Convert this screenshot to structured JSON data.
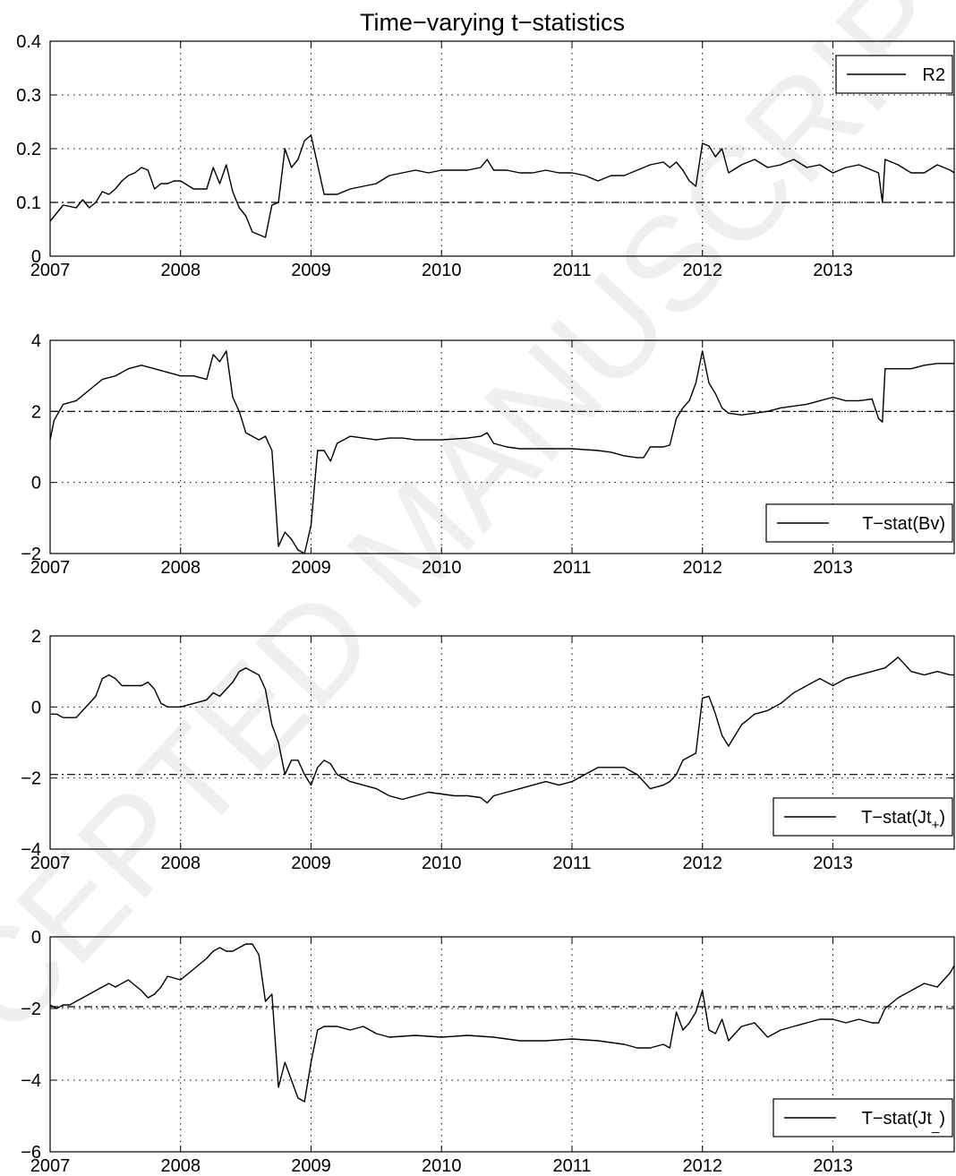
{
  "figure_title": "Time−varying t−statistics",
  "watermark": "ACCEPTED MANUSCRIPT",
  "chart_data": [
    {
      "type": "line",
      "title": "Time−varying t−statistics",
      "xlim": [
        2007.0,
        2013.93
      ],
      "ylim": [
        0,
        0.4
      ],
      "xticks": [
        2007,
        2008,
        2009,
        2010,
        2011,
        2012,
        2013
      ],
      "yticks": [
        0,
        0.1,
        0.2,
        0.3,
        0.4
      ],
      "ytick_labels": [
        "0",
        "0.1",
        "0.2",
        "0.3",
        "0.4"
      ],
      "grid": true,
      "legend": "top-right",
      "reference_line": {
        "y": 0.1,
        "style": "dash-dot"
      },
      "series": [
        {
          "name": "R2",
          "x": [
            2007.0,
            2007.05,
            2007.1,
            2007.2,
            2007.25,
            2007.3,
            2007.35,
            2007.4,
            2007.45,
            2007.5,
            2007.55,
            2007.6,
            2007.65,
            2007.7,
            2007.75,
            2007.8,
            2007.85,
            2007.9,
            2007.95,
            2008.0,
            2008.1,
            2008.2,
            2008.25,
            2008.3,
            2008.35,
            2008.4,
            2008.45,
            2008.5,
            2008.55,
            2008.6,
            2008.65,
            2008.7,
            2008.75,
            2008.8,
            2008.85,
            2008.9,
            2008.95,
            2009.0,
            2009.05,
            2009.1,
            2009.2,
            2009.3,
            2009.4,
            2009.5,
            2009.6,
            2009.7,
            2009.8,
            2009.9,
            2010.0,
            2010.2,
            2010.3,
            2010.35,
            2010.4,
            2010.5,
            2010.6,
            2010.7,
            2010.8,
            2010.9,
            2011.0,
            2011.1,
            2011.2,
            2011.3,
            2011.4,
            2011.5,
            2011.6,
            2011.7,
            2011.75,
            2011.8,
            2011.85,
            2011.9,
            2011.95,
            2012.0,
            2012.05,
            2012.1,
            2012.15,
            2012.2,
            2012.3,
            2012.4,
            2012.5,
            2012.6,
            2012.7,
            2012.8,
            2012.9,
            2013.0,
            2013.1,
            2013.2,
            2013.3,
            2013.35,
            2013.38,
            2013.4,
            2013.5,
            2013.6,
            2013.7,
            2013.8,
            2013.9,
            2013.93
          ],
          "y": [
            0.065,
            0.08,
            0.095,
            0.09,
            0.105,
            0.09,
            0.1,
            0.12,
            0.115,
            0.125,
            0.14,
            0.15,
            0.155,
            0.165,
            0.16,
            0.125,
            0.135,
            0.135,
            0.14,
            0.14,
            0.125,
            0.125,
            0.165,
            0.135,
            0.17,
            0.12,
            0.09,
            0.075,
            0.045,
            0.04,
            0.035,
            0.095,
            0.1,
            0.2,
            0.165,
            0.18,
            0.215,
            0.225,
            0.17,
            0.115,
            0.115,
            0.125,
            0.13,
            0.135,
            0.15,
            0.155,
            0.16,
            0.155,
            0.16,
            0.16,
            0.165,
            0.18,
            0.16,
            0.16,
            0.155,
            0.155,
            0.16,
            0.155,
            0.155,
            0.15,
            0.14,
            0.15,
            0.15,
            0.16,
            0.17,
            0.175,
            0.165,
            0.175,
            0.16,
            0.14,
            0.13,
            0.21,
            0.205,
            0.185,
            0.2,
            0.155,
            0.17,
            0.18,
            0.165,
            0.17,
            0.18,
            0.165,
            0.17,
            0.155,
            0.165,
            0.17,
            0.16,
            0.155,
            0.1,
            0.18,
            0.17,
            0.155,
            0.155,
            0.17,
            0.16,
            0.155
          ]
        }
      ]
    },
    {
      "type": "line",
      "xlim": [
        2007.0,
        2013.93
      ],
      "ylim": [
        -2,
        4
      ],
      "xticks": [
        2007,
        2008,
        2009,
        2010,
        2011,
        2012,
        2013
      ],
      "yticks": [
        -2,
        0,
        2,
        4
      ],
      "ytick_labels": [
        "−2",
        "0",
        "2",
        "4"
      ],
      "grid": true,
      "legend": "bottom-right",
      "reference_line": {
        "y": 2,
        "style": "dash-dot"
      },
      "series": [
        {
          "name": "T−stat(Bv)",
          "x": [
            2007.0,
            2007.03,
            2007.1,
            2007.2,
            2007.3,
            2007.4,
            2007.5,
            2007.6,
            2007.7,
            2007.8,
            2007.9,
            2008.0,
            2008.1,
            2008.2,
            2008.25,
            2008.3,
            2008.35,
            2008.4,
            2008.45,
            2008.5,
            2008.55,
            2008.6,
            2008.65,
            2008.7,
            2008.75,
            2008.8,
            2008.85,
            2008.9,
            2008.95,
            2009.0,
            2009.05,
            2009.1,
            2009.15,
            2009.2,
            2009.3,
            2009.4,
            2009.5,
            2009.6,
            2009.7,
            2009.8,
            2009.9,
            2010.0,
            2010.2,
            2010.3,
            2010.35,
            2010.4,
            2010.5,
            2010.6,
            2010.8,
            2011.0,
            2011.2,
            2011.3,
            2011.4,
            2011.5,
            2011.55,
            2011.6,
            2011.7,
            2011.75,
            2011.8,
            2011.85,
            2011.9,
            2011.95,
            2012.0,
            2012.05,
            2012.1,
            2012.15,
            2012.2,
            2012.3,
            2012.4,
            2012.5,
            2012.6,
            2012.8,
            2012.9,
            2013.0,
            2013.1,
            2013.2,
            2013.3,
            2013.35,
            2013.38,
            2013.4,
            2013.6,
            2013.7,
            2013.8,
            2013.93
          ],
          "y": [
            1.2,
            1.75,
            2.2,
            2.3,
            2.6,
            2.9,
            3.0,
            3.2,
            3.3,
            3.2,
            3.1,
            3.0,
            3.0,
            2.9,
            3.6,
            3.4,
            3.7,
            2.4,
            2.0,
            1.4,
            1.3,
            1.2,
            1.3,
            0.9,
            -1.8,
            -1.4,
            -1.6,
            -1.9,
            -2.0,
            -1.2,
            0.9,
            0.9,
            0.6,
            1.1,
            1.3,
            1.25,
            1.2,
            1.25,
            1.25,
            1.2,
            1.2,
            1.2,
            1.25,
            1.3,
            1.4,
            1.1,
            1.0,
            0.95,
            0.95,
            0.95,
            0.9,
            0.85,
            0.75,
            0.7,
            0.7,
            1.0,
            1.0,
            1.05,
            1.8,
            2.1,
            2.3,
            2.8,
            3.7,
            2.8,
            2.5,
            2.1,
            1.95,
            1.9,
            1.95,
            2.0,
            2.1,
            2.2,
            2.3,
            2.4,
            2.3,
            2.3,
            2.35,
            1.8,
            1.7,
            3.2,
            3.2,
            3.3,
            3.35,
            3.35
          ]
        }
      ]
    },
    {
      "type": "line",
      "xlim": [
        2007.0,
        2013.93
      ],
      "ylim": [
        -4,
        2
      ],
      "xticks": [
        2007,
        2008,
        2009,
        2010,
        2011,
        2012,
        2013
      ],
      "yticks": [
        -4,
        -2,
        0,
        2
      ],
      "ytick_labels": [
        "−4",
        "−2",
        "0",
        "2"
      ],
      "grid": true,
      "legend": "bottom-right",
      "reference_line": {
        "y": -1.9,
        "style": "dash-dot"
      },
      "series": [
        {
          "name": "T−stat(Jt+)",
          "x": [
            2007.0,
            2007.05,
            2007.1,
            2007.2,
            2007.3,
            2007.35,
            2007.4,
            2007.45,
            2007.5,
            2007.55,
            2007.6,
            2007.7,
            2007.75,
            2007.8,
            2007.85,
            2007.9,
            2008.0,
            2008.1,
            2008.2,
            2008.25,
            2008.3,
            2008.35,
            2008.4,
            2008.45,
            2008.5,
            2008.55,
            2008.6,
            2008.65,
            2008.7,
            2008.75,
            2008.8,
            2008.85,
            2008.9,
            2008.95,
            2009.0,
            2009.05,
            2009.1,
            2009.15,
            2009.2,
            2009.3,
            2009.4,
            2009.5,
            2009.6,
            2009.7,
            2009.8,
            2009.9,
            2010.0,
            2010.1,
            2010.2,
            2010.3,
            2010.35,
            2010.4,
            2010.5,
            2010.6,
            2010.7,
            2010.8,
            2010.9,
            2011.0,
            2011.1,
            2011.2,
            2011.3,
            2011.4,
            2011.5,
            2011.55,
            2011.6,
            2011.7,
            2011.75,
            2011.8,
            2011.85,
            2011.9,
            2011.95,
            2012.0,
            2012.05,
            2012.1,
            2012.15,
            2012.2,
            2012.3,
            2012.4,
            2012.5,
            2012.6,
            2012.7,
            2012.8,
            2012.9,
            2013.0,
            2013.1,
            2013.2,
            2013.3,
            2013.4,
            2013.5,
            2013.55,
            2013.6,
            2013.7,
            2013.8,
            2013.9,
            2013.93
          ],
          "y": [
            -0.2,
            -0.2,
            -0.3,
            -0.3,
            0.1,
            0.3,
            0.8,
            0.9,
            0.8,
            0.6,
            0.6,
            0.6,
            0.7,
            0.5,
            0.1,
            0.0,
            0.0,
            0.1,
            0.2,
            0.4,
            0.3,
            0.5,
            0.7,
            1.0,
            1.1,
            1.0,
            0.9,
            0.5,
            -0.5,
            -1.0,
            -1.9,
            -1.5,
            -1.5,
            -1.9,
            -2.2,
            -1.7,
            -1.5,
            -1.6,
            -1.9,
            -2.1,
            -2.2,
            -2.3,
            -2.5,
            -2.6,
            -2.5,
            -2.4,
            -2.45,
            -2.5,
            -2.5,
            -2.55,
            -2.7,
            -2.5,
            -2.4,
            -2.3,
            -2.2,
            -2.1,
            -2.2,
            -2.1,
            -1.9,
            -1.7,
            -1.7,
            -1.7,
            -1.9,
            -2.1,
            -2.3,
            -2.2,
            -2.1,
            -1.9,
            -1.5,
            -1.4,
            -1.3,
            0.25,
            0.3,
            -0.2,
            -0.8,
            -1.1,
            -0.5,
            -0.2,
            -0.1,
            0.1,
            0.4,
            0.6,
            0.8,
            0.6,
            0.8,
            0.9,
            1.0,
            1.1,
            1.4,
            1.2,
            1.0,
            0.9,
            1.0,
            0.9,
            0.9
          ]
        }
      ]
    },
    {
      "type": "line",
      "xlim": [
        2007.0,
        2013.93
      ],
      "ylim": [
        -6,
        0
      ],
      "xticks": [
        2007,
        2008,
        2009,
        2010,
        2011,
        2012,
        2013
      ],
      "yticks": [
        -6,
        -4,
        -2,
        0
      ],
      "ytick_labels": [
        "−6",
        "−4",
        "−2",
        "0"
      ],
      "grid": true,
      "legend": "bottom-right",
      "reference_line": {
        "y": -1.95,
        "style": "dash-dot"
      },
      "series": [
        {
          "name": "T−stat(Jt−)",
          "x": [
            2007.0,
            2007.05,
            2007.1,
            2007.15,
            2007.2,
            2007.3,
            2007.4,
            2007.45,
            2007.5,
            2007.6,
            2007.7,
            2007.75,
            2007.8,
            2007.85,
            2007.9,
            2008.0,
            2008.1,
            2008.2,
            2008.25,
            2008.3,
            2008.35,
            2008.4,
            2008.45,
            2008.5,
            2008.55,
            2008.6,
            2008.65,
            2008.7,
            2008.75,
            2008.8,
            2008.85,
            2008.9,
            2008.95,
            2009.0,
            2009.05,
            2009.1,
            2009.2,
            2009.3,
            2009.4,
            2009.5,
            2009.6,
            2009.8,
            2010.0,
            2010.2,
            2010.4,
            2010.6,
            2010.8,
            2011.0,
            2011.2,
            2011.4,
            2011.5,
            2011.6,
            2011.7,
            2011.75,
            2011.8,
            2011.85,
            2011.9,
            2011.95,
            2012.0,
            2012.05,
            2012.1,
            2012.15,
            2012.2,
            2012.3,
            2012.4,
            2012.5,
            2012.6,
            2012.7,
            2012.8,
            2012.9,
            2013.0,
            2013.1,
            2013.2,
            2013.3,
            2013.35,
            2013.4,
            2013.5,
            2013.6,
            2013.7,
            2013.8,
            2013.9,
            2013.93
          ],
          "y": [
            -1.9,
            -2.0,
            -1.9,
            -1.9,
            -1.8,
            -1.6,
            -1.4,
            -1.3,
            -1.4,
            -1.2,
            -1.5,
            -1.7,
            -1.6,
            -1.4,
            -1.1,
            -1.2,
            -0.9,
            -0.6,
            -0.4,
            -0.3,
            -0.4,
            -0.4,
            -0.3,
            -0.2,
            -0.2,
            -0.5,
            -1.8,
            -1.6,
            -4.2,
            -3.5,
            -4.0,
            -4.5,
            -4.6,
            -3.5,
            -2.6,
            -2.5,
            -2.5,
            -2.6,
            -2.5,
            -2.7,
            -2.8,
            -2.75,
            -2.8,
            -2.75,
            -2.8,
            -2.9,
            -2.9,
            -2.85,
            -2.9,
            -3.0,
            -3.1,
            -3.1,
            -3.0,
            -3.1,
            -2.1,
            -2.6,
            -2.4,
            -2.1,
            -1.5,
            -2.6,
            -2.7,
            -2.3,
            -2.9,
            -2.5,
            -2.4,
            -2.8,
            -2.6,
            -2.5,
            -2.4,
            -2.3,
            -2.3,
            -2.4,
            -2.3,
            -2.4,
            -2.4,
            -2.0,
            -1.7,
            -1.5,
            -1.3,
            -1.4,
            -1.0,
            -0.8
          ]
        }
      ]
    }
  ]
}
